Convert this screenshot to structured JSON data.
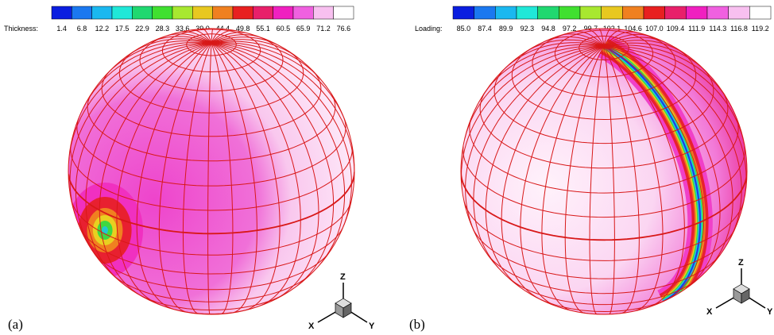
{
  "panels": [
    {
      "label": "(a)",
      "legend": {
        "title": "Thickness:",
        "ticks": [
          "1.4",
          "6.8",
          "12.2",
          "17.5",
          "22.9",
          "28.3",
          "33.6",
          "39.0",
          "44.4",
          "49.8",
          "55.1",
          "60.5",
          "65.9",
          "71.2",
          "76.6"
        ]
      },
      "axes": {
        "z": "Z",
        "x": "X",
        "y": "Y"
      }
    },
    {
      "label": "(b)",
      "legend": {
        "title": "Loading:",
        "ticks": [
          "85.0",
          "87.4",
          "89.9",
          "92.3",
          "94.8",
          "97.2",
          "99.7",
          "102.1",
          "104.6",
          "107.0",
          "109.4",
          "111.9",
          "114.3",
          "116.8",
          "119.2"
        ]
      },
      "axes": {
        "z": "Z",
        "x": "X",
        "y": "Y"
      }
    }
  ]
}
